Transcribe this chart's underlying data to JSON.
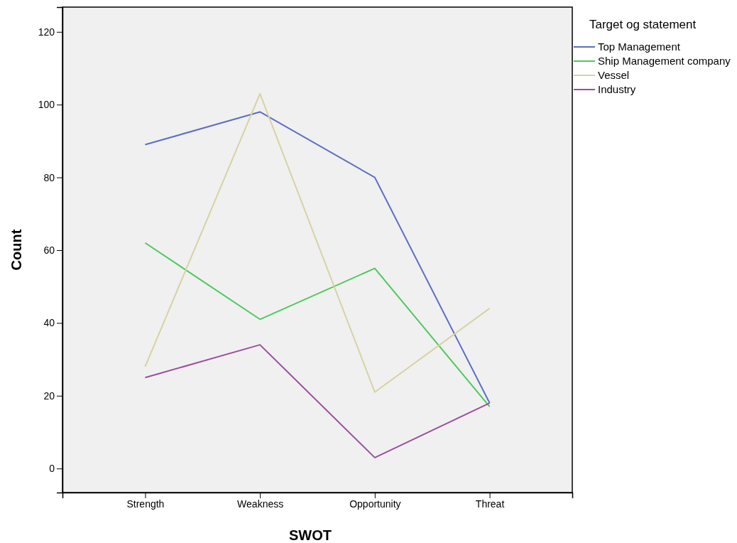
{
  "chart_data": {
    "type": "line",
    "xlabel": "SWOT",
    "ylabel": "Count",
    "legend_title": "Target og statement",
    "legend": "right",
    "grid": false,
    "marker": "none",
    "line_style": "solid",
    "categories": [
      "Strength",
      "Weakness",
      "Opportunity",
      "Threat"
    ],
    "ylim": [
      -6.6,
      126.8
    ],
    "yticks": [
      0,
      20,
      40,
      60,
      80,
      100,
      120
    ],
    "series": [
      {
        "name": "Top Management",
        "color": "#5c6fc4",
        "values": [
          89,
          98,
          80,
          18
        ]
      },
      {
        "name": "Ship Management company",
        "color": "#4ec95a",
        "values": [
          62,
          41,
          55,
          17
        ]
      },
      {
        "name": "Vessel",
        "color": "#d8d2a2",
        "values": [
          28,
          103,
          21,
          44
        ]
      },
      {
        "name": "Industry",
        "color": "#9a4f9e",
        "values": [
          25,
          34,
          3,
          18
        ]
      }
    ]
  }
}
